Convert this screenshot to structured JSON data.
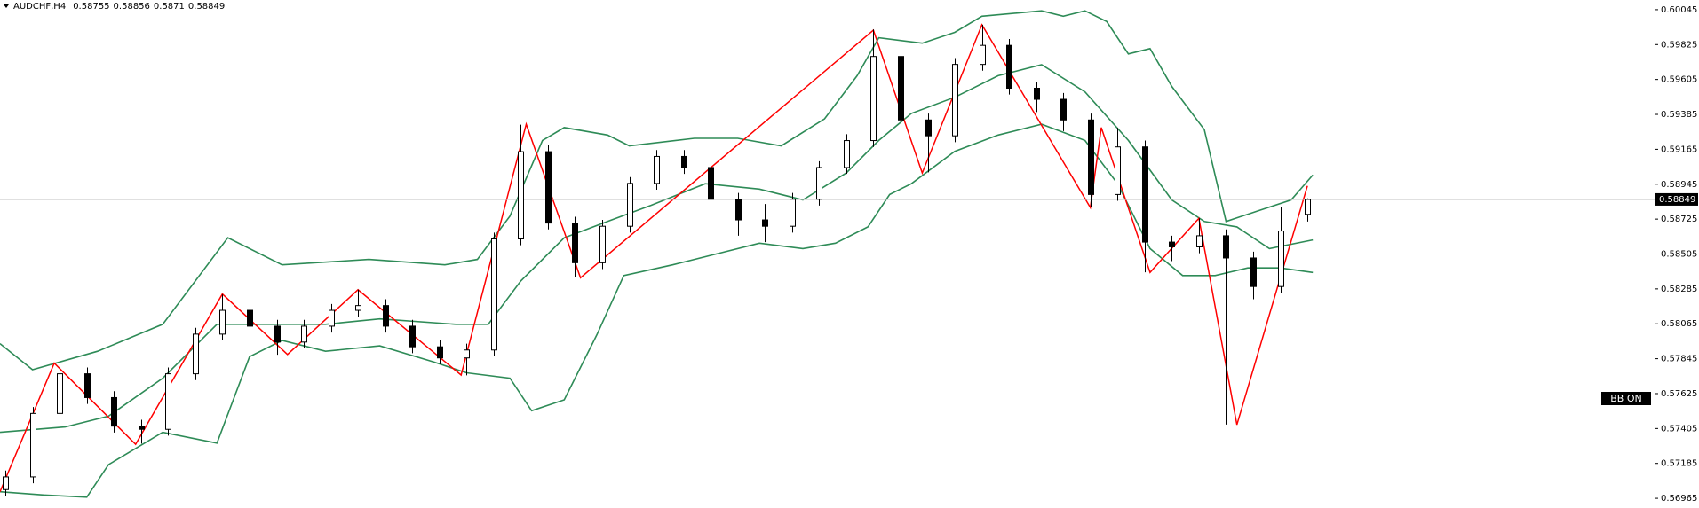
{
  "chart_data": {
    "type": "candlestick",
    "symbol": "AUDCHF,H4",
    "badge": "BB ON",
    "xlim": [
      0,
      305
    ],
    "ylim": [
      0.56904,
      0.60106
    ],
    "yticks": [
      0.60045,
      0.59825,
      0.59605,
      0.59385,
      0.59165,
      0.58945,
      0.58725,
      0.58505,
      0.58285,
      0.58065,
      0.57845,
      0.57625,
      0.57405,
      0.57185,
      0.56965
    ],
    "up_color": "#ffffff",
    "down_color": "#000000",
    "x": [
      1,
      6,
      11,
      16,
      21,
      26,
      31,
      36,
      41,
      46,
      51,
      56,
      61,
      66,
      71,
      76,
      81,
      86,
      91,
      96,
      101,
      106,
      111,
      116,
      121,
      126,
      131,
      136,
      141,
      146,
      151,
      156,
      161,
      166,
      171,
      176,
      181,
      186,
      191,
      196,
      201,
      206,
      211,
      216,
      221,
      226,
      231,
      236,
      241
    ],
    "open": [
      0.5702,
      0.571,
      0.575,
      0.5775,
      0.576,
      0.5742,
      0.574,
      0.5775,
      0.58,
      0.5815,
      0.5805,
      0.5795,
      0.5805,
      0.5815,
      0.5818,
      0.5805,
      0.5792,
      0.5785,
      0.579,
      0.586,
      0.5915,
      0.587,
      0.5845,
      0.5868,
      0.5895,
      0.5912,
      0.5905,
      0.5885,
      0.5872,
      0.5868,
      0.5885,
      0.5905,
      0.5922,
      0.5975,
      0.5935,
      0.5925,
      0.597,
      0.5982,
      0.5955,
      0.5948,
      0.5935,
      0.5888,
      0.5918,
      0.5858,
      0.5855,
      0.5862,
      0.5848,
      0.583,
      0.58755
    ],
    "high": [
      0.5714,
      0.5754,
      0.5782,
      0.5779,
      0.5764,
      0.5746,
      0.5779,
      0.5804,
      0.5825,
      0.5819,
      0.5809,
      0.5809,
      0.5819,
      0.5828,
      0.5822,
      0.5809,
      0.5796,
      0.5794,
      0.5864,
      0.5932,
      0.5919,
      0.5874,
      0.5872,
      0.5899,
      0.5916,
      0.5916,
      0.5909,
      0.5889,
      0.5882,
      0.5889,
      0.5909,
      0.5926,
      0.5992,
      0.5979,
      0.5939,
      0.5974,
      0.5995,
      0.5986,
      0.5959,
      0.5952,
      0.5939,
      0.593,
      0.5922,
      0.5862,
      0.5873,
      0.5866,
      0.5852,
      0.588,
      0.58856
    ],
    "low": [
      0.5698,
      0.5706,
      0.5746,
      0.5756,
      0.5738,
      0.5731,
      0.5736,
      0.5771,
      0.5796,
      0.5801,
      0.5787,
      0.5791,
      0.5801,
      0.5811,
      0.5801,
      0.5788,
      0.5781,
      0.5774,
      0.5786,
      0.5856,
      0.5866,
      0.5836,
      0.5841,
      0.5864,
      0.5891,
      0.5901,
      0.5881,
      0.5862,
      0.5858,
      0.5864,
      0.5881,
      0.5901,
      0.5918,
      0.5928,
      0.5902,
      0.5921,
      0.5966,
      0.5951,
      0.594,
      0.5928,
      0.588,
      0.5884,
      0.5839,
      0.5846,
      0.5851,
      0.5743,
      0.5822,
      0.5826,
      0.5871
    ],
    "close": [
      0.571,
      0.575,
      0.5775,
      0.576,
      0.5742,
      0.574,
      0.5775,
      0.58,
      0.5815,
      0.5805,
      0.5795,
      0.5805,
      0.5815,
      0.5818,
      0.5805,
      0.5792,
      0.5785,
      0.579,
      0.586,
      0.5915,
      0.587,
      0.5845,
      0.5868,
      0.5895,
      0.5912,
      0.5905,
      0.5885,
      0.5872,
      0.5868,
      0.5885,
      0.5905,
      0.5922,
      0.5975,
      0.5935,
      0.5925,
      0.597,
      0.5982,
      0.5955,
      0.5948,
      0.5935,
      0.5888,
      0.5918,
      0.5858,
      0.5855,
      0.5862,
      0.5848,
      0.583,
      0.5865,
      0.58849
    ],
    "lines": [
      {
        "color": "#2e8b57",
        "x": [
          0,
          6,
          18,
          30,
          42,
          52,
          68,
          82,
          88,
          94,
          100,
          104,
          112,
          116,
          128,
          136,
          144,
          152,
          158,
          162,
          170,
          176,
          181,
          192,
          196,
          200,
          204,
          208,
          212,
          216,
          222,
          226,
          232,
          238,
          242
        ],
        "values": [
          0.5794,
          0.57776,
          0.57892,
          0.58062,
          0.58607,
          0.58437,
          0.58471,
          0.58437,
          0.58471,
          0.58744,
          0.59221,
          0.59302,
          0.59255,
          0.59187,
          0.59234,
          0.59234,
          0.59187,
          0.59357,
          0.59629,
          0.59868,
          0.59834,
          0.59902,
          0.60004,
          0.60038,
          0.60004,
          0.60038,
          0.5997,
          0.59766,
          0.598,
          0.59561,
          0.59289,
          0.5871,
          0.58778,
          0.58846,
          0.59003
        ]
      },
      {
        "color": "#2e8b57",
        "x": [
          0,
          12,
          20,
          30,
          40,
          50,
          60,
          70,
          84,
          90,
          96,
          104,
          112,
          120,
          130,
          140,
          148,
          156,
          162,
          168,
          176,
          184,
          192,
          200,
          208,
          216,
          222,
          228,
          234,
          242
        ],
        "values": [
          0.57381,
          0.57415,
          0.57483,
          0.57722,
          0.58062,
          0.58062,
          0.58062,
          0.58096,
          0.58062,
          0.58062,
          0.58335,
          0.58607,
          0.5871,
          0.58812,
          0.58948,
          0.58914,
          0.58846,
          0.59016,
          0.59221,
          0.59391,
          0.59493,
          0.59629,
          0.59698,
          0.59527,
          0.59221,
          0.58846,
          0.5871,
          0.58676,
          0.58539,
          0.58594
        ]
      },
      {
        "color": "#2e8b57",
        "x": [
          0,
          8,
          16,
          20,
          30,
          40,
          46,
          52,
          60,
          70,
          80,
          86,
          94,
          98,
          104,
          110,
          115,
          124,
          132,
          140,
          148,
          154,
          160,
          164,
          168,
          176,
          184,
          192,
          200,
          206,
          212,
          218,
          224,
          230,
          236,
          242
        ],
        "values": [
          0.57006,
          0.56986,
          0.56972,
          0.57177,
          0.57381,
          0.57313,
          0.57858,
          0.5796,
          0.57892,
          0.57926,
          0.57824,
          0.57756,
          0.57722,
          0.57517,
          0.57586,
          0.57994,
          0.58369,
          0.58437,
          0.58505,
          0.58573,
          0.58539,
          0.58573,
          0.58676,
          0.5888,
          0.58948,
          0.59152,
          0.59255,
          0.59323,
          0.59221,
          0.58948,
          0.58539,
          0.58369,
          0.58369,
          0.58417,
          0.58417,
          0.58389
        ]
      },
      {
        "color": "#ff0000",
        "x": [
          0,
          10,
          25,
          41,
          53,
          66,
          85,
          97,
          107,
          161,
          170,
          181,
          201,
          203,
          212,
          221,
          228,
          241
        ],
        "values": [
          0.57006,
          0.57817,
          0.57306,
          0.58253,
          0.57872,
          0.5828,
          0.57742,
          0.59323,
          0.58355,
          0.59916,
          0.59016,
          0.5995,
          0.58798,
          0.59302,
          0.58389,
          0.5873,
          0.57429,
          0.58934
        ]
      }
    ]
  }
}
